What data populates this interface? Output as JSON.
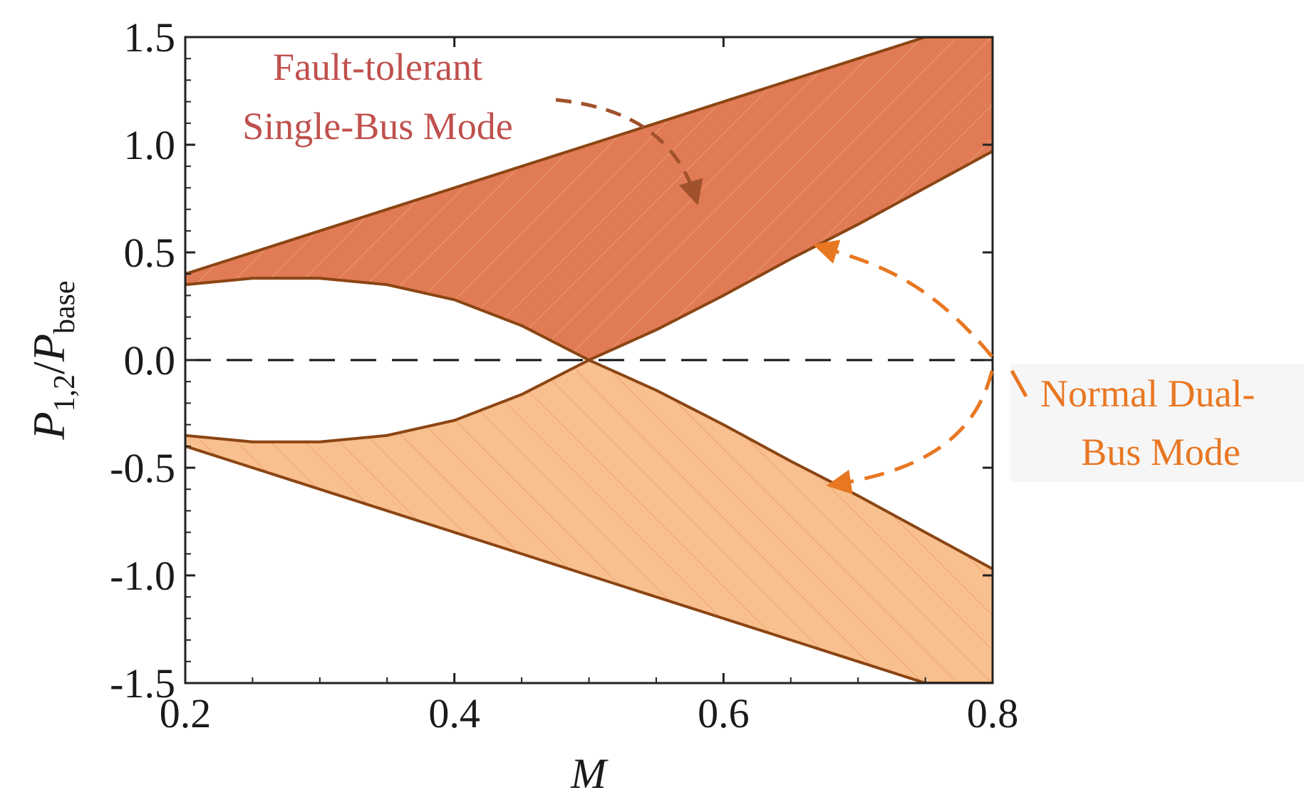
{
  "chart_data": {
    "type": "area",
    "title": "",
    "xlabel": "M",
    "ylabel": {
      "main": "P",
      "sub1": "1,2",
      "slash": "/",
      "main2": "P",
      "sub2": "base"
    },
    "xlim": [
      0.2,
      0.8
    ],
    "ylim": [
      -1.5,
      1.5
    ],
    "x_ticks": [
      "0.2",
      "0.4",
      "0.6",
      "0.8"
    ],
    "y_ticks": [
      "1.5",
      "1.0",
      "0.5",
      "0.0",
      "-0.5",
      "-1.0",
      "-1.5"
    ],
    "x_tick_values": [
      0.2,
      0.4,
      0.6,
      0.8
    ],
    "y_tick_values": [
      1.5,
      1.0,
      0.5,
      0.0,
      -0.5,
      -1.0,
      -1.5
    ],
    "grid": false,
    "reference_line": {
      "y": 0.0,
      "style": "dashed"
    },
    "series": [
      {
        "region": "upper",
        "color": "#e07b55",
        "hatch": true,
        "outer": {
          "x": [
            0.2,
            0.3,
            0.4,
            0.5,
            0.6,
            0.7,
            0.75,
            0.8
          ],
          "y": [
            0.4,
            0.6,
            0.8,
            1.0,
            1.2,
            1.4,
            1.5,
            1.5
          ]
        },
        "inner": {
          "x": [
            0.2,
            0.25,
            0.3,
            0.35,
            0.4,
            0.45,
            0.5
          ],
          "y": [
            0.35,
            0.38,
            0.38,
            0.35,
            0.28,
            0.16,
            0.0
          ]
        },
        "lower": {
          "x": [
            0.5,
            0.55,
            0.6,
            0.65,
            0.7,
            0.75,
            0.8
          ],
          "y": [
            0.0,
            0.14,
            0.3,
            0.47,
            0.63,
            0.8,
            0.97
          ]
        }
      },
      {
        "region": "lower",
        "color": "#f8c08e",
        "hatch": true,
        "outer": {
          "x": [
            0.2,
            0.3,
            0.4,
            0.5,
            0.6,
            0.7,
            0.75,
            0.8
          ],
          "y": [
            -0.4,
            -0.6,
            -0.8,
            -1.0,
            -1.2,
            -1.4,
            -1.5,
            -1.5
          ]
        },
        "inner": {
          "x": [
            0.2,
            0.25,
            0.3,
            0.35,
            0.4,
            0.45,
            0.5
          ],
          "y": [
            -0.35,
            -0.38,
            -0.38,
            -0.35,
            -0.28,
            -0.16,
            0.0
          ]
        },
        "lower": {
          "x": [
            0.5,
            0.55,
            0.6,
            0.65,
            0.7,
            0.75,
            0.8
          ],
          "y": [
            0.0,
            -0.14,
            -0.3,
            -0.47,
            -0.63,
            -0.8,
            -0.97
          ]
        }
      }
    ],
    "annotations": [
      {
        "name": "single-bus",
        "lines": [
          "Fault-tolerant",
          "Single-Bus Mode"
        ],
        "color": "#c0504d",
        "target": {
          "x": 0.58,
          "y": 0.74
        }
      },
      {
        "name": "dual-bus",
        "lines": [
          "Normal Dual-",
          "Bus Mode"
        ],
        "color": "#e87722",
        "targets": [
          {
            "x": 0.67,
            "y": 0.53
          },
          {
            "x": 0.68,
            "y": -0.58
          }
        ]
      }
    ],
    "colors": {
      "upper_fill": "#e07b55",
      "lower_fill": "#f8c08e",
      "boundary": "#8b4513",
      "hatch_upper": "#ea9b71",
      "hatch_lower": "#eea270",
      "dual_arrow": "#e87722",
      "single_arrow": "#a0522d"
    }
  }
}
